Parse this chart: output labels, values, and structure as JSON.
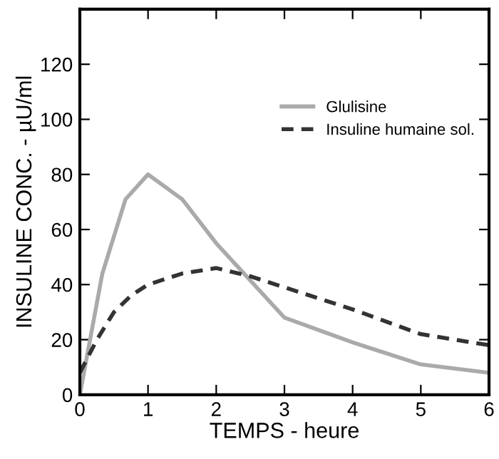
{
  "chart_data": {
    "type": "line",
    "xlabel": "TEMPS - heure",
    "ylabel": "INSULINE CONC. - µU/ml",
    "xlim": [
      0,
      6
    ],
    "xticks": [
      0,
      1,
      2,
      3,
      4,
      5,
      6
    ],
    "ylim": [
      0,
      140
    ],
    "yticks": [
      0,
      20,
      40,
      60,
      80,
      100,
      120
    ],
    "legend": "top right",
    "grid": false,
    "marker": "none",
    "series": [
      {
        "name": "Glulisine",
        "color": "#aaaaaa",
        "line_style": "solid",
        "x": [
          0,
          0.33,
          0.67,
          1,
          1.5,
          2,
          3,
          4,
          5,
          6
        ],
        "values": [
          0,
          44,
          71,
          80,
          71,
          55,
          28,
          19,
          11,
          8
        ]
      },
      {
        "name": "Insuline humaine sol.",
        "color": "#333333",
        "line_style": "dashed",
        "x": [
          0,
          0.25,
          0.5,
          0.75,
          1,
          1.5,
          2,
          2.5,
          3,
          4,
          5,
          6
        ],
        "values": [
          8,
          20,
          30,
          36,
          40,
          44,
          46,
          43,
          39,
          31,
          22,
          18
        ]
      }
    ]
  }
}
